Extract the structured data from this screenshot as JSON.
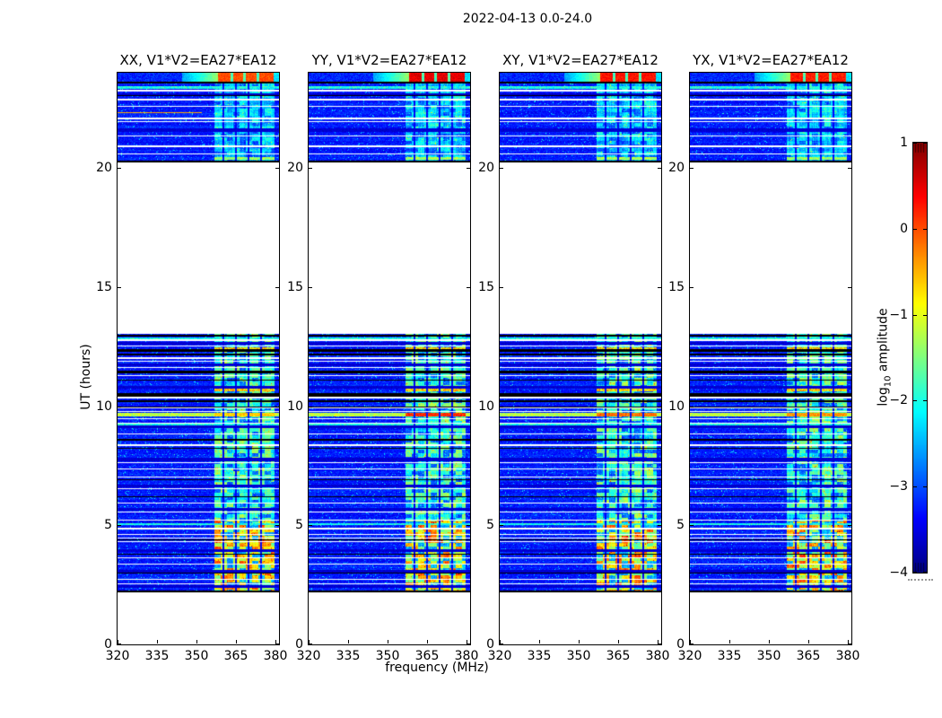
{
  "chart_data": {
    "type": "heatmap",
    "title": "2022-04-13 0.0-24.0",
    "xlabel": "frequency (MHz)",
    "ylabel": "UT (hours)",
    "x_range": [
      320,
      381.4
    ],
    "y_range": [
      0,
      24
    ],
    "x_ticks": [
      320,
      335,
      350,
      365,
      380
    ],
    "y_ticks": [
      0,
      5,
      10,
      15,
      20
    ],
    "grid": false,
    "panels": [
      {
        "label": "XX, V1*V2=EA27*EA12",
        "seed": 101,
        "hot_row_level": 0.66,
        "top_row_level": 0.8,
        "streak": true
      },
      {
        "label": "YY, V1*V2=EA27*EA12",
        "seed": 202,
        "hot_row_level": 0.82,
        "top_row_level": 0.9,
        "streak": false
      },
      {
        "label": "XY, V1*V2=EA27*EA12",
        "seed": 303,
        "hot_row_level": 0.76,
        "top_row_level": 0.86,
        "streak": false
      },
      {
        "label": "YX, V1*V2=EA27*EA12",
        "seed": 404,
        "hot_row_level": 0.72,
        "top_row_level": 0.85,
        "streak": false
      }
    ],
    "colorbar": {
      "label_prefix": "log",
      "label_sub": "10",
      "label_suffix": " amplitude",
      "ticks": [
        1,
        0,
        -1,
        -2,
        -3,
        -4
      ],
      "range": [
        -4,
        1
      ],
      "colormap": "jet",
      "colormap_anchors": [
        "#00007f",
        "#0000ff",
        "#00ffff",
        "#ffff00",
        "#ff0000",
        "#7f0000"
      ]
    },
    "observed_blocks_ut": [
      [
        20.28,
        24.0
      ],
      [
        2.22,
        13.04
      ]
    ],
    "rfi_band_relx": [
      0.6,
      0.97
    ],
    "rfi_dark_lines_relx": [
      0.649,
      0.728,
      0.807,
      0.886
    ],
    "top_hot_row_ut": [
      23.64,
      24.0
    ],
    "top_row_gaps_relx": [
      0.705,
      0.785,
      0.865
    ],
    "bright_row": {
      "ut": 9.72,
      "w": 4
    },
    "hot_cells_rows_ut": [
      {
        "ut": 10.72,
        "w": 3
      },
      {
        "ut": 12.47,
        "w": 3
      }
    ],
    "green_cells_row": {
      "ut": 20.45,
      "w": 3
    },
    "white_lines_ut": [
      {
        "ut": 23.28,
        "w": 2
      },
      {
        "ut": 22.92,
        "w": 2
      },
      {
        "ut": 22.6,
        "w": 1
      },
      {
        "ut": 22.12,
        "w": 2
      },
      {
        "ut": 21.95,
        "w": 1
      },
      {
        "ut": 21.38,
        "w": 1
      },
      {
        "ut": 20.95,
        "w": 2
      },
      {
        "ut": 20.6,
        "w": 1
      },
      {
        "ut": 12.8,
        "w": 2
      },
      {
        "ut": 12.56,
        "w": 1
      },
      {
        "ut": 12.05,
        "w": 2
      },
      {
        "ut": 11.9,
        "w": 1
      },
      {
        "ut": 11.63,
        "w": 1
      },
      {
        "ut": 11.3,
        "w": 1
      },
      {
        "ut": 10.4,
        "w": 2
      },
      {
        "ut": 9.93,
        "w": 1
      },
      {
        "ut": 9.8,
        "w": 1
      },
      {
        "ut": 9.5,
        "w": 1
      },
      {
        "ut": 9.32,
        "w": 1
      },
      {
        "ut": 8.84,
        "w": 1
      },
      {
        "ut": 8.4,
        "w": 2
      },
      {
        "ut": 7.65,
        "w": 1
      },
      {
        "ut": 7.38,
        "w": 1
      },
      {
        "ut": 7.05,
        "w": 1
      },
      {
        "ut": 6.55,
        "w": 1
      },
      {
        "ut": 5.97,
        "w": 1
      },
      {
        "ut": 5.57,
        "w": 1
      },
      {
        "ut": 5.25,
        "w": 1
      },
      {
        "ut": 4.9,
        "w": 2
      },
      {
        "ut": 4.65,
        "w": 1
      },
      {
        "ut": 4.5,
        "w": 1
      },
      {
        "ut": 4.34,
        "w": 1
      },
      {
        "ut": 3.65,
        "w": 1
      },
      {
        "ut": 3.38,
        "w": 1
      },
      {
        "ut": 2.75,
        "w": 1
      },
      {
        "ut": 2.58,
        "w": 1
      }
    ],
    "black_lines_ut": [
      {
        "ut": 23.62,
        "w": 2
      },
      {
        "ut": 23.05,
        "w": 1
      },
      {
        "ut": 20.3,
        "w": 2
      },
      {
        "ut": 12.98,
        "w": 2
      },
      {
        "ut": 12.38,
        "w": 3
      },
      {
        "ut": 12.2,
        "w": 2
      },
      {
        "ut": 11.48,
        "w": 3
      },
      {
        "ut": 11.12,
        "w": 1
      },
      {
        "ut": 10.55,
        "w": 4
      },
      {
        "ut": 10.25,
        "w": 2
      },
      {
        "ut": 10.0,
        "w": 2
      },
      {
        "ut": 8.62,
        "w": 2
      },
      {
        "ut": 8.27,
        "w": 1
      },
      {
        "ut": 6.92,
        "w": 1
      },
      {
        "ut": 6.22,
        "w": 1
      },
      {
        "ut": 4.42,
        "w": 1
      },
      {
        "ut": 3.82,
        "w": 1
      },
      {
        "ut": 3.0,
        "w": 1
      },
      {
        "ut": 2.26,
        "w": 2
      }
    ],
    "dark_rows_ut": [
      {
        "ut": 23.15,
        "w": 3
      },
      {
        "ut": 21.65,
        "w": 4
      },
      {
        "ut": 12.68,
        "w": 3
      },
      {
        "ut": 11.78,
        "w": 3
      },
      {
        "ut": 10.85,
        "w": 3
      },
      {
        "ut": 9.18,
        "w": 3
      },
      {
        "ut": 7.82,
        "w": 4
      },
      {
        "ut": 6.72,
        "w": 3
      },
      {
        "ut": 5.72,
        "w": 3
      },
      {
        "ut": 3.98,
        "w": 3
      },
      {
        "ut": 3.12,
        "w": 3
      },
      {
        "ut": 2.48,
        "w": 3
      }
    ],
    "cyan_rows_ut": [
      {
        "ut": 23.42,
        "w": 3
      },
      {
        "ut": 12.9,
        "w": 2
      },
      {
        "ut": 9.25,
        "w": 2
      },
      {
        "ut": 5.1,
        "w": 2
      }
    ],
    "colors": {
      "background": "#ffffff",
      "deep_blue": "#0000a8",
      "cyan": "#00e0e0",
      "green": "#66dd55",
      "yellow": "#eeee00",
      "orange": "#ff9900",
      "red": "#dd1100"
    }
  }
}
